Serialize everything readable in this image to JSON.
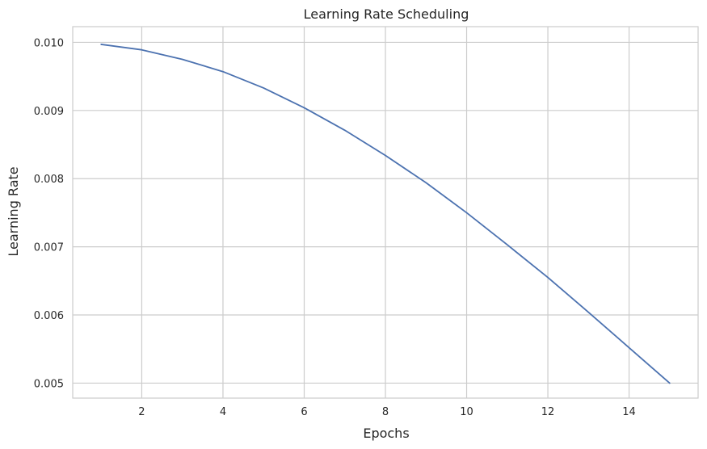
{
  "chart_data": {
    "type": "line",
    "title": "Learning Rate Scheduling",
    "xlabel": "Epochs",
    "ylabel": "Learning Rate",
    "xlim": [
      0.3,
      15.7
    ],
    "ylim": [
      0.00478,
      0.01023
    ],
    "grid": true,
    "x_ticks": [
      2,
      4,
      6,
      8,
      10,
      12,
      14
    ],
    "y_ticks": [
      0.005,
      0.006,
      0.007,
      0.008,
      0.009,
      0.01
    ],
    "x_tick_labels": [
      "2",
      "4",
      "6",
      "8",
      "10",
      "12",
      "14"
    ],
    "y_tick_labels": [
      "0.005",
      "0.006",
      "0.007",
      "0.008",
      "0.009",
      "0.010"
    ],
    "series": [
      {
        "x": [
          1,
          2,
          3,
          4,
          5,
          6,
          7,
          8,
          9,
          10,
          11,
          12,
          13,
          14,
          15
        ],
        "y": [
          0.00997,
          0.00989,
          0.00975,
          0.00957,
          0.00933,
          0.00904,
          0.00871,
          0.00834,
          0.00794,
          0.0075,
          0.00703,
          0.00655,
          0.00604,
          0.00552,
          0.005
        ],
        "color": "#4c72b0"
      }
    ]
  }
}
